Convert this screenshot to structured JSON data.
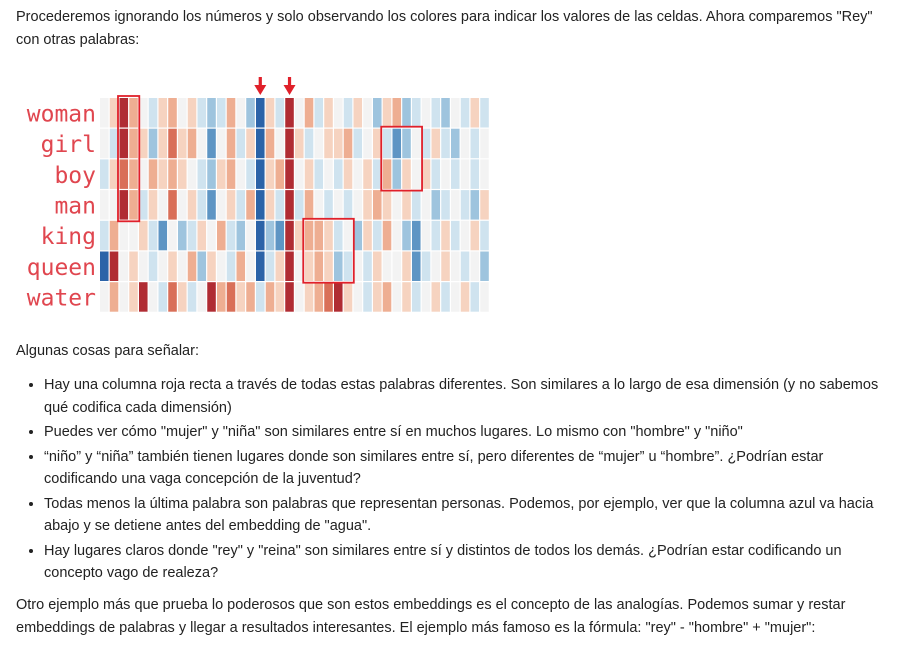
{
  "intro_text": "Procederemos ignorando los números y solo observando los colores para indicar los valores de las celdas. Ahora comparemos \"Rey\" con otras palabras:",
  "figure": {
    "words": [
      "woman",
      "girl",
      "boy",
      "man",
      "king",
      "queen",
      "water"
    ],
    "arrow_columns": [
      16,
      19
    ],
    "highlight_boxes": [
      {
        "rows": [
          0,
          3
        ],
        "cols": [
          2,
          3
        ]
      },
      {
        "rows": [
          1,
          2
        ],
        "cols": [
          29,
          32
        ]
      },
      {
        "rows": [
          4,
          5
        ],
        "cols": [
          21,
          25
        ]
      }
    ],
    "palette": [
      "#2b63a8",
      "#5e95c4",
      "#9ec4de",
      "#cfe3ef",
      "#f3f3f3",
      "#f6d3c0",
      "#eeae92",
      "#d96f58",
      "#b02c33"
    ],
    "grid": [
      [
        4,
        5,
        8,
        6,
        4,
        3,
        5,
        6,
        4,
        5,
        3,
        2,
        3,
        6,
        4,
        2,
        0,
        5,
        3,
        8,
        4,
        6,
        3,
        5,
        4,
        3,
        5,
        4,
        2,
        5,
        6,
        2,
        3,
        4,
        3,
        2,
        4,
        3,
        5,
        3
      ],
      [
        4,
        3,
        8,
        6,
        5,
        2,
        5,
        7,
        5,
        6,
        4,
        1,
        4,
        6,
        3,
        5,
        0,
        6,
        4,
        8,
        5,
        3,
        4,
        5,
        5,
        6,
        3,
        4,
        5,
        3,
        1,
        2,
        4,
        3,
        5,
        3,
        2,
        4,
        3,
        4
      ],
      [
        3,
        5,
        7,
        6,
        4,
        6,
        5,
        6,
        5,
        4,
        3,
        2,
        5,
        6,
        4,
        3,
        0,
        5,
        6,
        8,
        4,
        5,
        3,
        4,
        3,
        5,
        4,
        5,
        3,
        6,
        2,
        5,
        4,
        5,
        3,
        4,
        3,
        4,
        3,
        4
      ],
      [
        4,
        4,
        8,
        6,
        3,
        5,
        4,
        7,
        4,
        5,
        3,
        1,
        4,
        5,
        3,
        6,
        0,
        5,
        3,
        8,
        3,
        6,
        4,
        3,
        4,
        3,
        4,
        5,
        6,
        5,
        4,
        5,
        3,
        4,
        2,
        3,
        4,
        3,
        2,
        5
      ],
      [
        3,
        6,
        4,
        4,
        5,
        3,
        1,
        4,
        2,
        3,
        5,
        4,
        6,
        3,
        2,
        4,
        0,
        2,
        1,
        8,
        5,
        6,
        6,
        5,
        3,
        4,
        2,
        5,
        3,
        6,
        4,
        2,
        1,
        4,
        3,
        5,
        3,
        4,
        5,
        3
      ],
      [
        0,
        8,
        4,
        5,
        4,
        3,
        4,
        5,
        4,
        6,
        2,
        5,
        4,
        3,
        6,
        4,
        0,
        3,
        5,
        8,
        4,
        5,
        6,
        5,
        2,
        3,
        4,
        3,
        5,
        4,
        4,
        5,
        1,
        3,
        4,
        5,
        4,
        3,
        4,
        2
      ],
      [
        4,
        6,
        4,
        5,
        8,
        4,
        3,
        7,
        5,
        3,
        4,
        8,
        6,
        7,
        5,
        6,
        3,
        6,
        5,
        8,
        4,
        5,
        6,
        7,
        8,
        5,
        4,
        3,
        5,
        6,
        4,
        5,
        3,
        4,
        5,
        3,
        4,
        5,
        3,
        4
      ]
    ]
  },
  "lead_text": "Algunas cosas para señalar:",
  "bullets": [
    "Hay una columna roja recta a través de todas estas palabras diferentes. Son similares a lo largo de esa dimensión (y no sabemos qué codifica cada dimensión)",
    "Puedes ver cómo \"mujer\" y \"niña\" son similares entre sí en muchos lugares. Lo mismo con \"hombre\" y \"niño\"",
    "“niño” y “niña” también tienen lugares donde son similares entre sí, pero diferentes de “mujer” u “hombre”. ¿Podrían estar codificando una vaga concepción de la juventud?",
    "Todas menos la última palabra son palabras que representan personas. Podemos, por ejemplo, ver que la columna azul va hacia abajo y se detiene antes del embedding de \"agua\".",
    "Hay lugares claros donde \"rey\" y \"reina\" son similares entre sí y distintos de todos los demás. ¿Podrían estar codificando un concepto vago de realeza?"
  ],
  "outro_text": "Otro ejemplo más que prueba lo poderosos que son estos embeddings es el concepto de las analogías. Podemos sumar y restar embeddings de palabras y llegar a resultados interesantes. El ejemplo más famoso es la fórmula: \"rey\" - \"hombre\" + \"mujer\":"
}
